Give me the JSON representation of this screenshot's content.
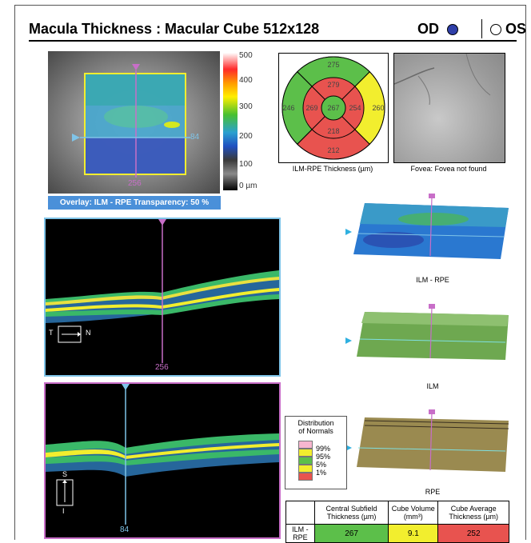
{
  "header": {
    "title": "Macula Thickness : Macular Cube 512x128",
    "od_label": "OD",
    "os_label": "OS",
    "od_selected": true
  },
  "fundus": {
    "top_marker": "▼",
    "horizontal_scan_label": "84",
    "vertical_scan_label": "256",
    "overlay_label": "Overlay: ILM - RPE  Transparency: 50 %"
  },
  "colorbar": {
    "ticks": [
      "500",
      "400",
      "300",
      "200",
      "100",
      "0 µm"
    ]
  },
  "bscan_horizontal": {
    "position_label": "256",
    "orientation_left": "T",
    "orientation_right": "N"
  },
  "bscan_vertical": {
    "position_label": "84",
    "orientation_top": "S",
    "orientation_bottom": "I"
  },
  "etdrs": {
    "superior_outer": "275",
    "temporal_outer": "246",
    "nasal_outer": "260",
    "inferior_outer": "212",
    "superior_inner": "279",
    "temporal_inner": "269",
    "center": "267",
    "nasal_inner": "254",
    "inferior_inner": "218",
    "caption": "ILM-RPE Thickness (µm)",
    "colors": {
      "green": "#5cbf4a",
      "red": "#e8534f",
      "yellow": "#f2ee2e"
    }
  },
  "fovea": {
    "caption": "Fovea: Fovea not found"
  },
  "maps_3d": {
    "ilm_rpe_caption": "ILM - RPE",
    "ilm_caption": "ILM",
    "rpe_caption": "RPE"
  },
  "legend": {
    "title_line1": "Distribution",
    "title_line2": "of Normals",
    "levels": [
      {
        "label": "99%",
        "color": "#f7b6cf"
      },
      {
        "label": "95%",
        "color": "#f2ee2e"
      },
      {
        "label": "5%",
        "color": "#5cbf4a"
      },
      {
        "label": "1%",
        "color": "#f2ee2e"
      },
      {
        "label": "",
        "color": "#e8534f"
      }
    ]
  },
  "summary_table": {
    "headers": [
      "",
      "Central Subfield Thickness (µm)",
      "Cube Volume (mm³)",
      "Cube Average Thickness (µm)"
    ],
    "row_label": "ILM - RPE",
    "central_subfield": "267",
    "cube_volume": "9.1",
    "cube_average": "252",
    "cell_colors": [
      "#5cbf4a",
      "#f2ee2e",
      "#e8534f"
    ]
  }
}
